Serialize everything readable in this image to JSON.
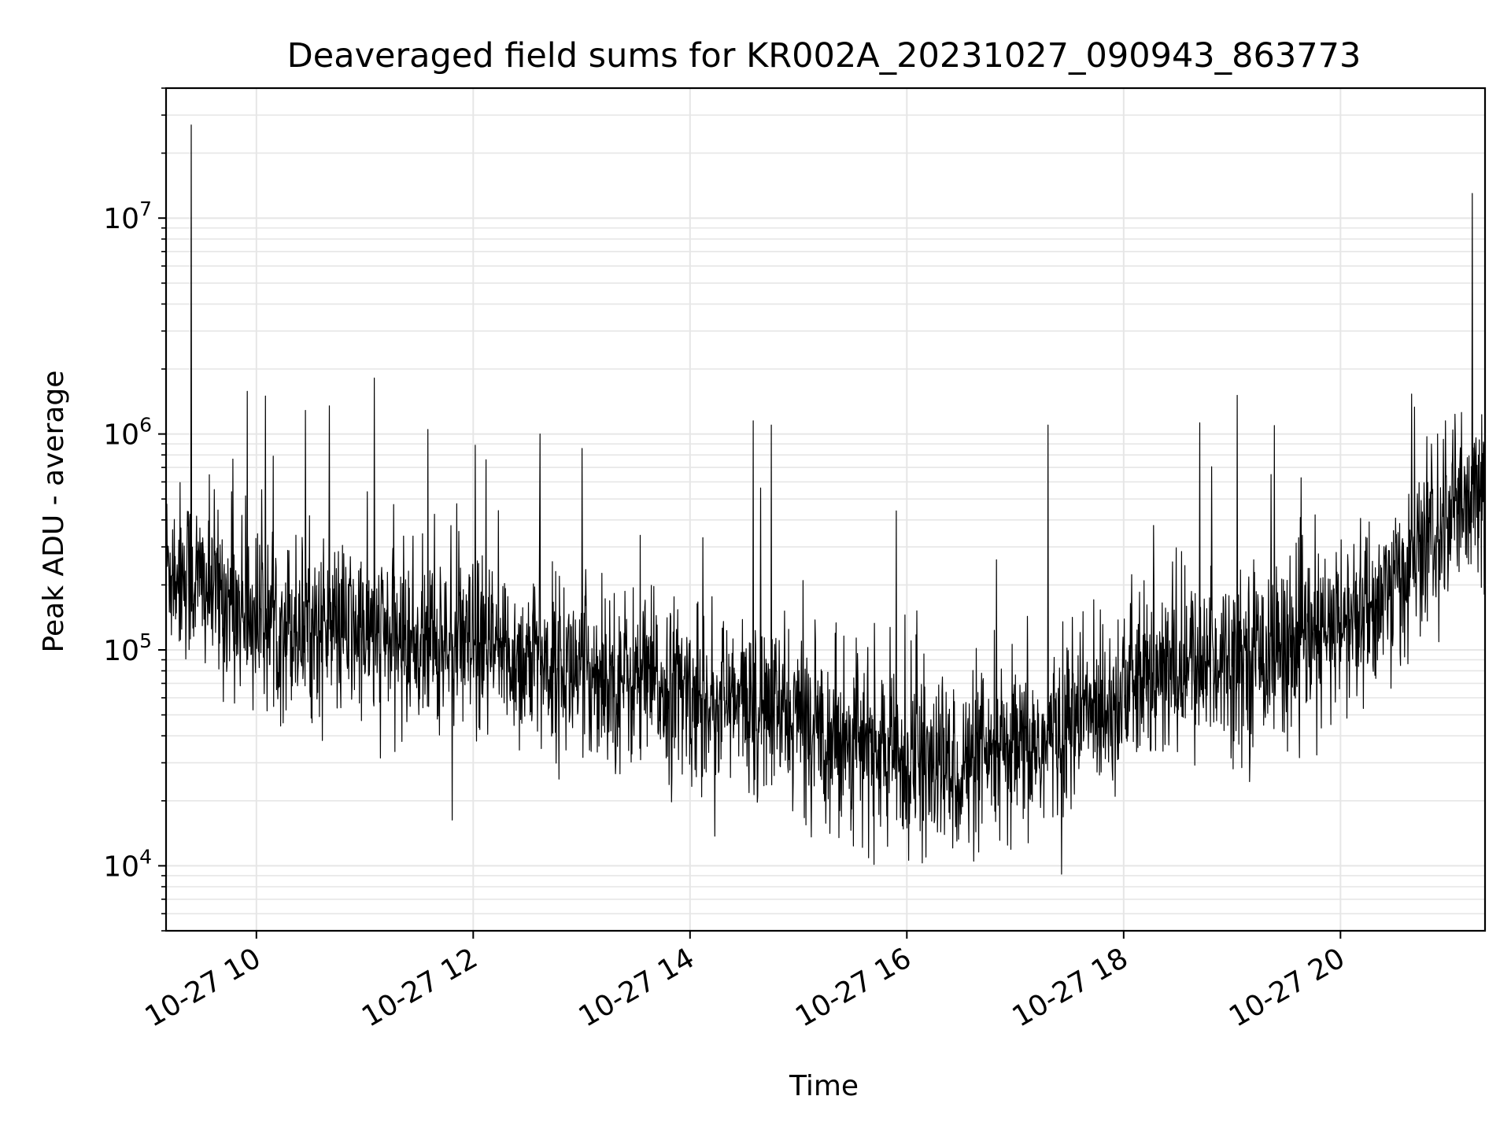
{
  "chart_data": {
    "type": "line",
    "title": "Deaveraged field sums for KR002A_20231027_090943_863773",
    "xlabel": "Time",
    "ylabel": "Peak ADU - average",
    "yscale": "log",
    "ylim": [
      5000,
      40000000
    ],
    "xlim": [
      "2023-10-27 09:10",
      "2023-10-27 21:20"
    ],
    "grid": true,
    "line_color": "#000000",
    "x_ticks": [
      {
        "value": "2023-10-27 10:00",
        "label": "10-27 10"
      },
      {
        "value": "2023-10-27 12:00",
        "label": "10-27 12"
      },
      {
        "value": "2023-10-27 14:00",
        "label": "10-27 14"
      },
      {
        "value": "2023-10-27 16:00",
        "label": "10-27 16"
      },
      {
        "value": "2023-10-27 18:00",
        "label": "10-27 18"
      },
      {
        "value": "2023-10-27 20:00",
        "label": "10-27 20"
      }
    ],
    "y_ticks": [
      {
        "value": 10000,
        "base": "10",
        "exp": "4"
      },
      {
        "value": 100000,
        "base": "10",
        "exp": "5"
      },
      {
        "value": 1000000,
        "base": "10",
        "exp": "6"
      },
      {
        "value": 10000000,
        "base": "10",
        "exp": "7"
      }
    ],
    "series": [
      {
        "x": [
          "2023-10-27 09:10",
          "2023-10-27 09:20",
          "2023-10-27 09:30",
          "2023-10-27 09:40",
          "2023-10-27 09:50",
          "2023-10-27 10:00",
          "2023-10-27 10:15",
          "2023-10-27 10:30",
          "2023-10-27 10:45",
          "2023-10-27 11:00",
          "2023-10-27 11:15",
          "2023-10-27 11:30",
          "2023-10-27 11:45",
          "2023-10-27 12:00",
          "2023-10-27 12:15",
          "2023-10-27 12:30",
          "2023-10-27 12:45",
          "2023-10-27 13:00",
          "2023-10-27 13:15",
          "2023-10-27 13:30",
          "2023-10-27 13:45",
          "2023-10-27 14:00",
          "2023-10-27 14:15",
          "2023-10-27 14:30",
          "2023-10-27 14:45",
          "2023-10-27 15:00",
          "2023-10-27 15:15",
          "2023-10-27 15:30",
          "2023-10-27 15:45",
          "2023-10-27 16:00",
          "2023-10-27 16:15",
          "2023-10-27 16:30",
          "2023-10-27 16:45",
          "2023-10-27 17:00",
          "2023-10-27 17:15",
          "2023-10-27 17:30",
          "2023-10-27 17:45",
          "2023-10-27 18:00",
          "2023-10-27 18:15",
          "2023-10-27 18:30",
          "2023-10-27 18:45",
          "2023-10-27 19:00",
          "2023-10-27 19:15",
          "2023-10-27 19:30",
          "2023-10-27 19:45",
          "2023-10-27 20:00",
          "2023-10-27 20:15",
          "2023-10-27 20:30",
          "2023-10-27 20:45",
          "2023-10-27 21:00",
          "2023-10-27 21:10",
          "2023-10-27 21:20"
        ],
        "y": [
          250000,
          230000,
          200000,
          180000,
          160000,
          140000,
          135000,
          130000,
          125000,
          120000,
          115000,
          110000,
          105000,
          100000,
          95000,
          90000,
          85000,
          80000,
          76000,
          72000,
          68000,
          62000,
          58000,
          55000,
          52000,
          48000,
          42000,
          38000,
          34000,
          30000,
          28000,
          28000,
          30000,
          32000,
          36000,
          45000,
          55000,
          65000,
          72000,
          80000,
          88000,
          95000,
          100000,
          105000,
          110000,
          125000,
          150000,
          200000,
          280000,
          380000,
          450000,
          500000
        ]
      }
    ],
    "spikes": [
      {
        "x": "2023-10-27 09:24",
        "y": 27000000
      },
      {
        "x": "2023-10-27 21:13",
        "y": 13000000
      },
      {
        "x": "2023-10-27 10:05",
        "y": 1500000
      },
      {
        "x": "2023-10-27 11:35",
        "y": 1050000
      },
      {
        "x": "2023-10-27 12:37",
        "y": 1000000
      },
      {
        "x": "2023-10-27 14:35",
        "y": 1150000
      },
      {
        "x": "2023-10-27 14:45",
        "y": 1100000
      },
      {
        "x": "2023-10-27 17:18",
        "y": 1100000
      },
      {
        "x": "2023-10-27 20:58",
        "y": 1150000
      }
    ]
  }
}
